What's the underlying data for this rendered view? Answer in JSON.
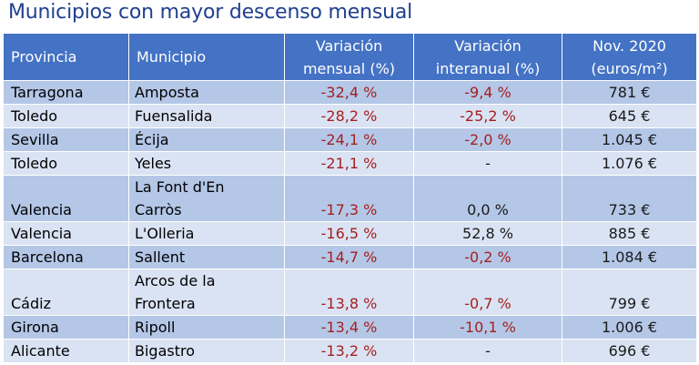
{
  "title": "Municipios con mayor descenso mensual",
  "headers": {
    "provincia": "Provincia",
    "municipio": "Municipio",
    "var_mensual_1": "Variación",
    "var_mensual_2": "mensual (%)",
    "var_interanual_1": "Variación",
    "var_interanual_2": "interanual (%)",
    "precio_1": "Nov. 2020",
    "precio_2": "(euros/m²)"
  },
  "rows": [
    {
      "provincia": "Tarragona",
      "municipio_1": "Amposta",
      "municipio_2": "",
      "mensual": "-32,4 %",
      "interanual": "-9,4 %",
      "precio": "781 €"
    },
    {
      "provincia": "Toledo",
      "municipio_1": "Fuensalida",
      "municipio_2": "",
      "mensual": "-28,2 %",
      "interanual": "-25,2 %",
      "precio": "645 €"
    },
    {
      "provincia": "Sevilla",
      "municipio_1": "Écija",
      "municipio_2": "",
      "mensual": "-24,1 %",
      "interanual": "-2,0 %",
      "precio": "1.045 €"
    },
    {
      "provincia": "Toledo",
      "municipio_1": "Yeles",
      "municipio_2": "",
      "mensual": "-21,1 %",
      "interanual": "-",
      "precio": "1.076 €"
    },
    {
      "provincia": "Valencia",
      "municipio_1": "La Font d'En",
      "municipio_2": "Carròs",
      "mensual": "-17,3 %",
      "interanual": "0,0 %",
      "precio": "733 €"
    },
    {
      "provincia": "Valencia",
      "municipio_1": "L'Olleria",
      "municipio_2": "",
      "mensual": "-16,5 %",
      "interanual": "52,8 %",
      "precio": "885 €"
    },
    {
      "provincia": "Barcelona",
      "municipio_1": "Sallent",
      "municipio_2": "",
      "mensual": "-14,7 %",
      "interanual": "-0,2 %",
      "precio": "1.084 €"
    },
    {
      "provincia": "Cádiz",
      "municipio_1": "Arcos de la",
      "municipio_2": "Frontera",
      "mensual": "-13,8 %",
      "interanual": "-0,7 %",
      "precio": "799 €"
    },
    {
      "provincia": "Girona",
      "municipio_1": "Ripoll",
      "municipio_2": "",
      "mensual": "-13,4 %",
      "interanual": "-10,1 %",
      "precio": "1.006 €"
    },
    {
      "provincia": "Alicante",
      "municipio_1": "Bigastro",
      "municipio_2": "",
      "mensual": "-13,2 %",
      "interanual": "-",
      "precio": "696 €"
    }
  ]
}
